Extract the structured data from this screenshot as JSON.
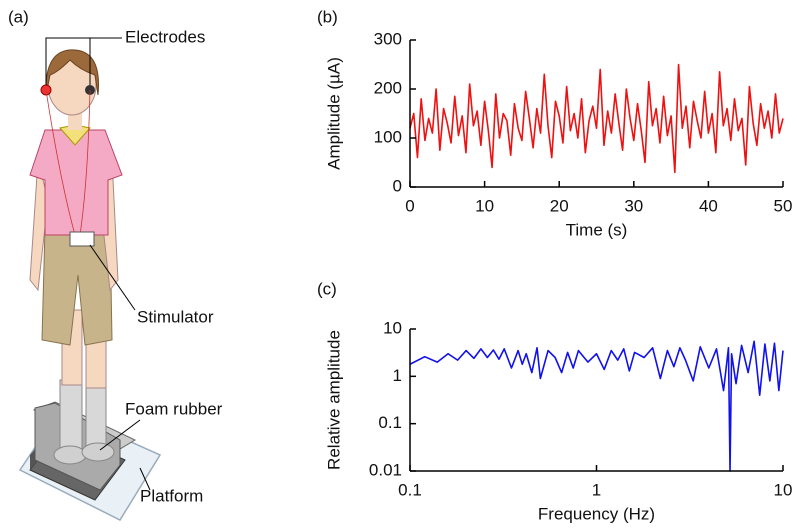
{
  "figure": {
    "panel_a": {
      "label": "(a)",
      "electrodes": "Electrodes",
      "stimulator": "Stimulator",
      "foam": "Foam rubber",
      "platform": "Platform"
    }
  },
  "chart_data": [
    {
      "type": "line",
      "panel_label": "(b)",
      "xlabel": "Time (s)",
      "ylabel": "Amplitude (µA)",
      "xlim": [
        0,
        50
      ],
      "xticks": [
        0,
        10,
        20,
        30,
        40,
        50
      ],
      "ylim": [
        0,
        300
      ],
      "yticks": [
        0,
        100,
        200,
        300
      ],
      "x": [
        0,
        0.5,
        1,
        1.5,
        2,
        2.5,
        3,
        3.5,
        4,
        4.5,
        5,
        5.5,
        6,
        6.5,
        7,
        7.5,
        8,
        8.5,
        9,
        9.5,
        10,
        10.5,
        11,
        11.5,
        12,
        12.5,
        13,
        13.5,
        14,
        14.5,
        15,
        15.5,
        16,
        16.5,
        17,
        17.5,
        18,
        18.5,
        19,
        19.5,
        20,
        20.5,
        21,
        21.5,
        22,
        22.5,
        23,
        23.5,
        24,
        24.5,
        25,
        25.5,
        26,
        26.5,
        27,
        27.5,
        28,
        28.5,
        29,
        29.5,
        30,
        30.5,
        31,
        31.5,
        32,
        32.5,
        33,
        33.5,
        34,
        34.5,
        35,
        35.5,
        36,
        36.5,
        37,
        37.5,
        38,
        38.5,
        39,
        39.5,
        40,
        40.5,
        41,
        41.5,
        42,
        42.5,
        43,
        43.5,
        44,
        44.5,
        45,
        45.5,
        46,
        46.5,
        47,
        47.5,
        48,
        48.5,
        49,
        49.5,
        50
      ],
      "series": [
        {
          "color": "#ee1111",
          "values": [
            120,
            150,
            60,
            180,
            95,
            140,
            110,
            200,
            75,
            160,
            130,
            90,
            185,
            105,
            145,
            70,
            210,
            125,
            155,
            85,
            175,
            115,
            40,
            190,
            100,
            150,
            135,
            65,
            170,
            120,
            95,
            195,
            140,
            80,
            160,
            110,
            230,
            125,
            60,
            175,
            145,
            90,
            205,
            115,
            150,
            100,
            180,
            70,
            135,
            165,
            120,
            240,
            85,
            155,
            110,
            190,
            130,
            75,
            200,
            140,
            95,
            170,
            115,
            50,
            215,
            125,
            160,
            90,
            185,
            105,
            145,
            30,
            250,
            120,
            165,
            80,
            175,
            135,
            100,
            195,
            110,
            150,
            70,
            235,
            125,
            160,
            95,
            180,
            115,
            140,
            45,
            205,
            130,
            85,
            170,
            120,
            155,
            100,
            190,
            110,
            140
          ]
        }
      ]
    },
    {
      "type": "line",
      "panel_label": "(c)",
      "xlabel": "Frequency (Hz)",
      "ylabel": "Relative amplitude",
      "xscale": "log",
      "yscale": "log",
      "xlim": [
        0.1,
        10
      ],
      "xticks": [
        0.1,
        1,
        10
      ],
      "ylim": [
        0.01,
        10
      ],
      "yticks": [
        0.01,
        0.1,
        1,
        10
      ],
      "x": [
        0.1,
        0.12,
        0.14,
        0.16,
        0.18,
        0.2,
        0.22,
        0.24,
        0.26,
        0.28,
        0.3,
        0.32,
        0.35,
        0.38,
        0.4,
        0.42,
        0.45,
        0.48,
        0.5,
        0.55,
        0.6,
        0.65,
        0.7,
        0.75,
        0.8,
        0.9,
        1,
        1.1,
        1.2,
        1.3,
        1.4,
        1.5,
        1.6,
        1.8,
        2,
        2.2,
        2.4,
        2.6,
        2.8,
        3,
        3.3,
        3.6,
        4,
        4.4,
        4.8,
        5.1,
        5.2,
        5.3,
        5.6,
        6,
        6.5,
        7,
        7.5,
        8,
        8.5,
        9,
        9.5,
        10
      ],
      "series": [
        {
          "color": "#1111ee",
          "values": [
            1.8,
            2.6,
            2,
            3,
            2.2,
            3.5,
            2.4,
            3.8,
            2.5,
            3.6,
            2.3,
            3.8,
            1.5,
            3.5,
            1.8,
            3,
            1.2,
            4,
            0.9,
            3.5,
            2.5,
            1.2,
            3.2,
            1.5,
            3.5,
            2,
            3,
            1.4,
            3.5,
            2.2,
            3.8,
            1.3,
            3.2,
            2.5,
            4,
            0.9,
            3.5,
            1.6,
            4,
            2.2,
            0.8,
            4.2,
            1.5,
            3.8,
            0.5,
            4,
            0.01,
            3,
            0.7,
            4.5,
            1.2,
            5.5,
            0.4,
            4.8,
            0.8,
            5,
            0.5,
            3.5
          ]
        }
      ]
    }
  ]
}
